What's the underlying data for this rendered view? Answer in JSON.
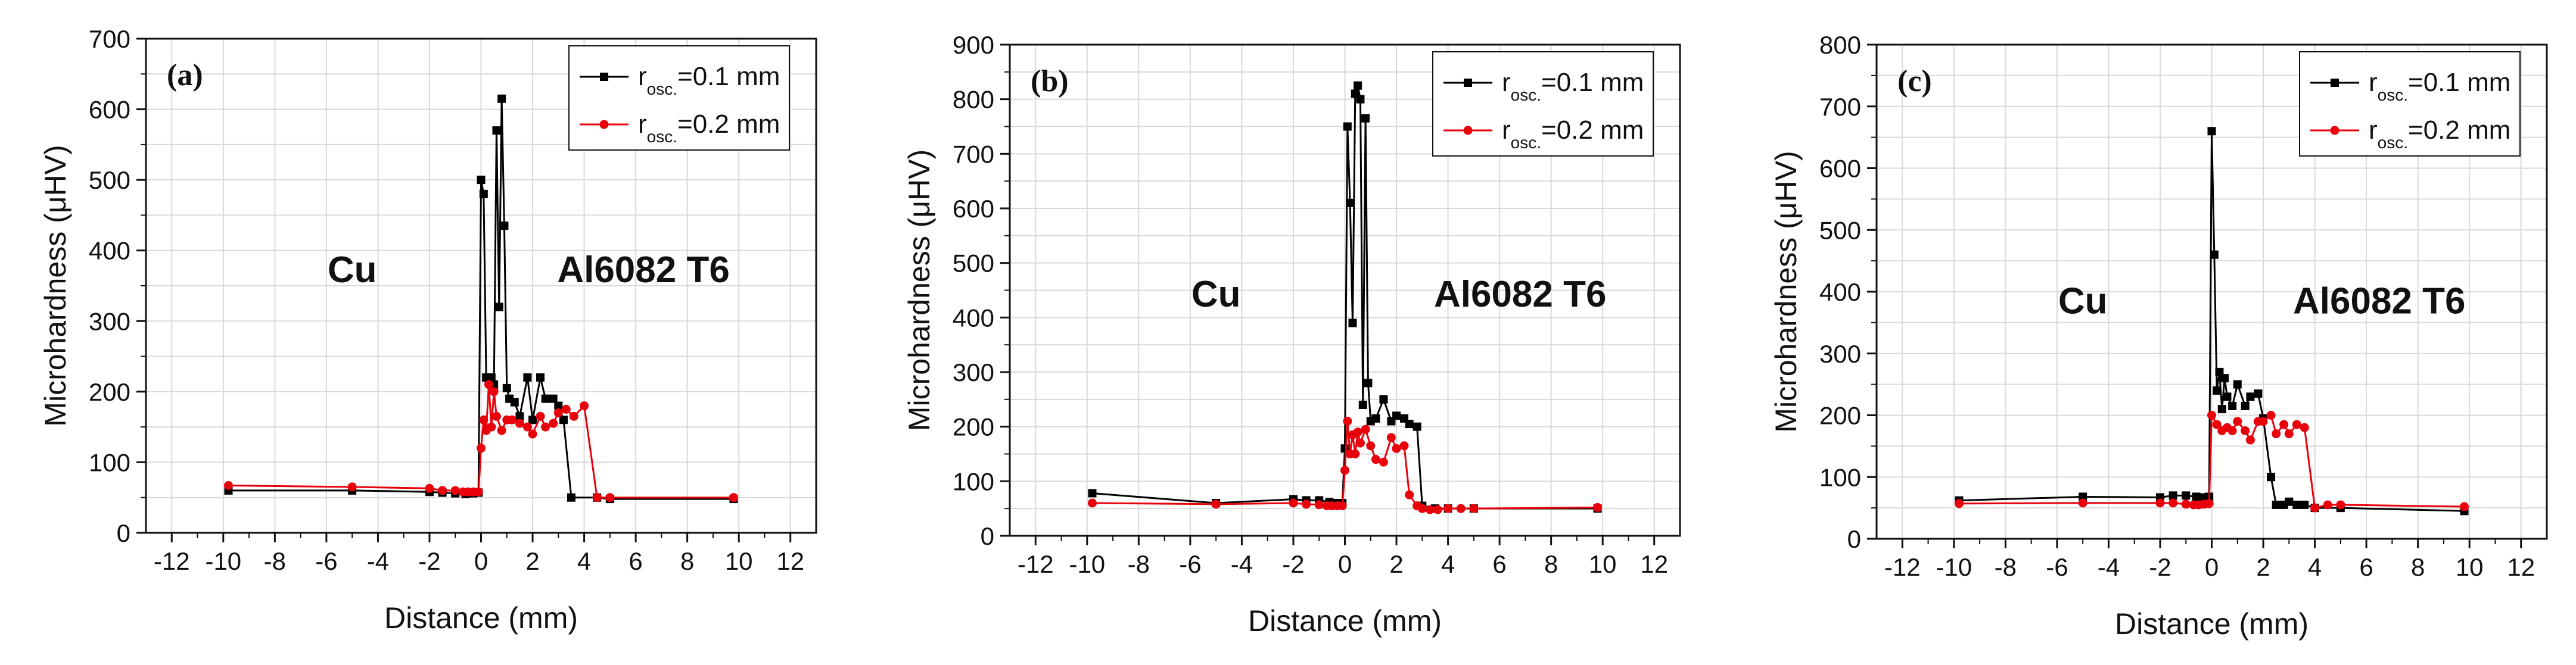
{
  "chart_data": [
    {
      "type": "line",
      "panel_label": "(a)",
      "xlabel": "Distance (mm)",
      "ylabel": "Microhardness (μHV)",
      "xlim": [
        -13,
        13
      ],
      "ylim": [
        0,
        700
      ],
      "xticks": [
        -12,
        -10,
        -8,
        -6,
        -4,
        -2,
        0,
        2,
        4,
        6,
        8,
        10,
        12
      ],
      "yticks": [
        0,
        100,
        200,
        300,
        400,
        500,
        600,
        700
      ],
      "grid": true,
      "legend_position": "top-right",
      "annotations": [
        {
          "text": "Cu",
          "x": -5,
          "y": 355
        },
        {
          "text": "Al6082 T6",
          "x": 6.3,
          "y": 355
        }
      ],
      "series": [
        {
          "name_main": "r",
          "name_sub": "osc.",
          "name_rest": "=0.1 mm",
          "color": "#000000",
          "marker": "square",
          "x": [
            -9.8,
            -5,
            -2,
            -1.5,
            -1,
            -0.6,
            -0.3,
            -0.1,
            0,
            0.1,
            0.2,
            0.3,
            0.4,
            0.5,
            0.6,
            0.7,
            0.8,
            0.9,
            1.0,
            1.1,
            1.3,
            1.5,
            1.8,
            2.0,
            2.3,
            2.5,
            2.8,
            3.0,
            3.2,
            3.5,
            4.5,
            5.0,
            9.8
          ],
          "y": [
            60,
            60,
            58,
            57,
            56,
            55,
            56,
            57,
            500,
            480,
            220,
            215,
            220,
            210,
            570,
            320,
            615,
            435,
            205,
            190,
            185,
            165,
            220,
            160,
            220,
            190,
            190,
            180,
            160,
            50,
            50,
            48,
            48
          ]
        },
        {
          "name_main": "r",
          "name_sub": "osc.",
          "name_rest": "=0.2 mm",
          "color": "#e8000b",
          "marker": "circle",
          "x": [
            -9.8,
            -5,
            -2,
            -1.5,
            -1,
            -0.7,
            -0.5,
            -0.3,
            -0.1,
            0,
            0.1,
            0.2,
            0.3,
            0.4,
            0.5,
            0.6,
            0.8,
            1.0,
            1.2,
            1.5,
            1.8,
            2.0,
            2.3,
            2.5,
            2.8,
            3.0,
            3.3,
            3.6,
            4.0,
            4.5,
            5.0,
            9.8
          ],
          "y": [
            67,
            65,
            63,
            60,
            60,
            58,
            58,
            58,
            58,
            120,
            160,
            145,
            210,
            150,
            200,
            165,
            145,
            160,
            160,
            155,
            150,
            140,
            165,
            150,
            155,
            170,
            175,
            165,
            180,
            50,
            50,
            50
          ]
        }
      ]
    },
    {
      "type": "line",
      "panel_label": "(b)",
      "xlabel": "Distance (mm)",
      "ylabel": "Microhardness (μHV)",
      "xlim": [
        -13,
        13
      ],
      "ylim": [
        0,
        900
      ],
      "xticks": [
        -12,
        -10,
        -8,
        -6,
        -4,
        -2,
        0,
        2,
        4,
        6,
        8,
        10,
        12
      ],
      "yticks": [
        0,
        100,
        200,
        300,
        400,
        500,
        600,
        700,
        800,
        900
      ],
      "grid": true,
      "legend_position": "top-right",
      "annotations": [
        {
          "text": "Cu",
          "x": -5,
          "y": 420
        },
        {
          "text": "Al6082 T6",
          "x": 6.8,
          "y": 420
        }
      ],
      "series": [
        {
          "name_main": "r",
          "name_sub": "osc.",
          "name_rest": "=0.1 mm",
          "color": "#000000",
          "marker": "square",
          "x": [
            -9.8,
            -5,
            -2,
            -1.5,
            -1,
            -0.6,
            -0.3,
            -0.1,
            0,
            0.1,
            0.2,
            0.3,
            0.4,
            0.5,
            0.6,
            0.7,
            0.8,
            0.9,
            1.0,
            1.2,
            1.5,
            1.8,
            2.0,
            2.3,
            2.5,
            2.8,
            3.0,
            3.5,
            4.0,
            5.0,
            9.8
          ],
          "y": [
            78,
            60,
            67,
            65,
            65,
            62,
            60,
            60,
            160,
            750,
            610,
            390,
            810,
            825,
            800,
            240,
            765,
            280,
            210,
            215,
            250,
            210,
            220,
            215,
            205,
            200,
            55,
            50,
            50,
            50,
            50
          ]
        },
        {
          "name_main": "r",
          "name_sub": "osc.",
          "name_rest": "=0.2 mm",
          "color": "#e8000b",
          "marker": "circle",
          "x": [
            -9.8,
            -5,
            -2,
            -1.5,
            -1,
            -0.7,
            -0.5,
            -0.3,
            -0.1,
            0,
            0.1,
            0.2,
            0.3,
            0.4,
            0.5,
            0.6,
            0.8,
            1.0,
            1.2,
            1.5,
            1.8,
            2.0,
            2.3,
            2.5,
            2.8,
            3.0,
            3.3,
            3.6,
            4.0,
            4.5,
            5.0,
            9.8
          ],
          "y": [
            60,
            58,
            60,
            58,
            57,
            55,
            55,
            55,
            55,
            120,
            210,
            150,
            185,
            150,
            190,
            170,
            195,
            165,
            140,
            135,
            180,
            160,
            165,
            75,
            55,
            50,
            48,
            48,
            50,
            50,
            50,
            52
          ]
        }
      ]
    },
    {
      "type": "line",
      "panel_label": "(c)",
      "xlabel": "Distance (mm)",
      "ylabel": "Microhardness (μHV)",
      "xlim": [
        -13,
        13
      ],
      "ylim": [
        0,
        800
      ],
      "xticks": [
        -12,
        -10,
        -8,
        -6,
        -4,
        -2,
        0,
        2,
        4,
        6,
        8,
        10,
        12
      ],
      "yticks": [
        0,
        100,
        200,
        300,
        400,
        500,
        600,
        700,
        800
      ],
      "grid": true,
      "legend_position": "top-right",
      "annotations": [
        {
          "text": "Cu",
          "x": -5,
          "y": 365
        },
        {
          "text": "Al6082 T6",
          "x": 6.5,
          "y": 365
        }
      ],
      "series": [
        {
          "name_main": "r",
          "name_sub": "osc.",
          "name_rest": "=0.1 mm",
          "color": "#000000",
          "marker": "square",
          "x": [
            -9.8,
            -5,
            -2,
            -1.5,
            -1,
            -0.6,
            -0.3,
            -0.1,
            0,
            0.1,
            0.2,
            0.3,
            0.4,
            0.5,
            0.6,
            0.8,
            1.0,
            1.3,
            1.5,
            1.8,
            2.0,
            2.3,
            2.5,
            2.8,
            3.0,
            3.3,
            3.6,
            4.0,
            5.0,
            9.8
          ],
          "y": [
            62,
            68,
            67,
            70,
            70,
            68,
            67,
            68,
            660,
            460,
            240,
            270,
            210,
            260,
            230,
            215,
            250,
            215,
            230,
            235,
            195,
            100,
            55,
            55,
            60,
            55,
            55,
            50,
            50,
            45
          ]
        },
        {
          "name_main": "r",
          "name_sub": "osc.",
          "name_rest": "=0.2 mm",
          "color": "#e8000b",
          "marker": "circle",
          "x": [
            -9.8,
            -5,
            -2,
            -1.5,
            -1,
            -0.7,
            -0.5,
            -0.3,
            -0.1,
            0,
            0.2,
            0.4,
            0.6,
            0.8,
            1.0,
            1.3,
            1.5,
            1.8,
            2.0,
            2.3,
            2.5,
            2.8,
            3.0,
            3.3,
            3.6,
            4.0,
            4.5,
            5.0,
            9.8
          ],
          "y": [
            57,
            58,
            58,
            58,
            56,
            55,
            55,
            56,
            57,
            200,
            185,
            175,
            180,
            175,
            190,
            175,
            160,
            190,
            190,
            200,
            170,
            185,
            170,
            185,
            180,
            50,
            55,
            55,
            52
          ]
        }
      ]
    }
  ]
}
